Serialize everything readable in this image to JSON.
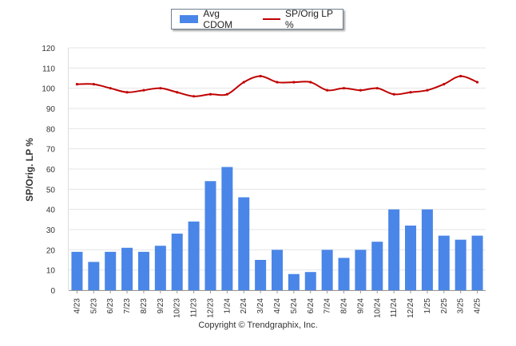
{
  "chart_data": {
    "type": "bar",
    "categories": [
      "4/23",
      "5/23",
      "6/23",
      "7/23",
      "8/23",
      "9/23",
      "10/23",
      "11/23",
      "12/23",
      "1/24",
      "2/24",
      "3/24",
      "4/24",
      "5/24",
      "6/24",
      "7/24",
      "8/24",
      "9/24",
      "10/24",
      "11/24",
      "12/24",
      "1/25",
      "2/25",
      "3/25",
      "4/25"
    ],
    "series": [
      {
        "name": "Avg CDOM",
        "type": "bar",
        "color": "#4a86e8",
        "values": [
          19,
          14,
          19,
          21,
          19,
          22,
          28,
          34,
          54,
          61,
          46,
          15,
          20,
          8,
          9,
          20,
          16,
          20,
          24,
          40,
          32,
          40,
          27,
          25,
          27
        ]
      },
      {
        "name": "SP/Orig LP %",
        "type": "line",
        "color": "#c00000",
        "values": [
          102,
          102,
          100,
          98,
          99,
          100,
          98,
          96,
          97,
          97,
          103,
          106,
          103,
          103,
          103,
          99,
          100,
          99,
          100,
          97,
          98,
          99,
          102,
          106,
          103
        ]
      }
    ],
    "ylabel": "SP/Orig. LP %",
    "ylim": [
      0,
      120
    ],
    "yticks": [
      0,
      10,
      20,
      30,
      40,
      50,
      60,
      70,
      80,
      90,
      100,
      110,
      120
    ],
    "grid": true,
    "legend_position": "top-center"
  },
  "footer": {
    "copyright": "Copyright © Trendgraphix, Inc."
  }
}
